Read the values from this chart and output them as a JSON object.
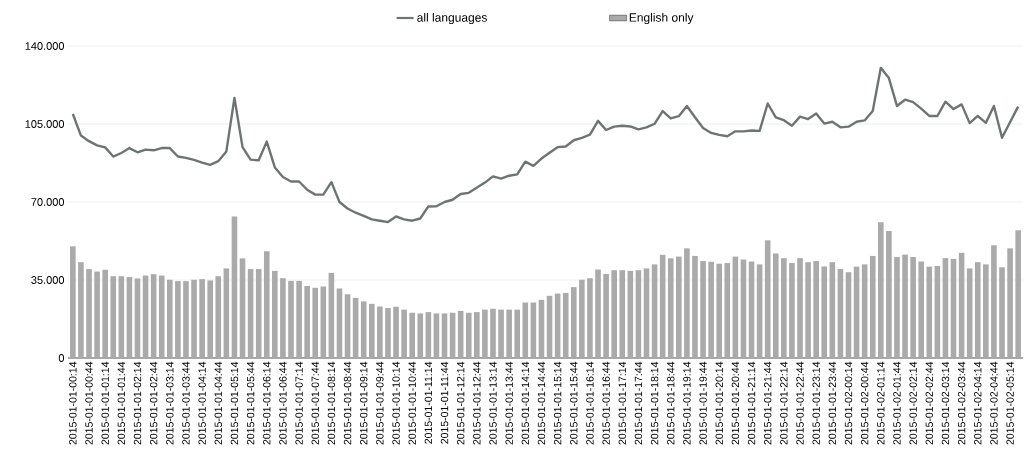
{
  "chart_data": {
    "type": "bar",
    "categories": [
      "2015-01-01-00:14",
      null,
      "2015-01-01-00:44",
      null,
      "2015-01-01-01:14",
      null,
      "2015-01-01-01:44",
      null,
      "2015-01-01-02:14",
      null,
      "2015-01-01-02:44",
      null,
      "2015-01-01-03:14",
      null,
      "2015-01-01-03:44",
      null,
      "2015-01-01-04:14",
      null,
      "2015-01-01-04:44",
      null,
      "2015-01-01-05:14",
      null,
      "2015-01-01-05:44",
      null,
      "2015-01-01-06:14",
      null,
      "2015-01-01-06:44",
      null,
      "2015-01-01-07:14",
      null,
      "2015-01-01-07:44",
      null,
      "2015-01-01-08:14",
      null,
      "2015-01-01-08:44",
      null,
      "2015-01-01-09:14",
      null,
      "2015-01-01-09:44",
      null,
      "2015-01-01-10:14",
      null,
      "2015-01-01-10:44",
      null,
      "2015-01-01-11:14",
      null,
      "2015-01-01-11:44",
      null,
      "2015-01-01-12:14",
      null,
      "2015-01-01-12:44",
      null,
      "2015-01-01-13:14",
      null,
      "2015-01-01-13:44",
      null,
      "2015-01-01-14:14",
      null,
      "2015-01-01-14:44",
      null,
      "2015-01-01-15:14",
      null,
      "2015-01-01-15:44",
      null,
      "2015-01-01-16:14",
      null,
      "2015-01-01-16:44",
      null,
      "2015-01-01-17:14",
      null,
      "2015-01-01-17:44",
      null,
      "2015-01-01-18:14",
      null,
      "2015-01-01-18:44",
      null,
      "2015-01-01-19:14",
      null,
      "2015-01-01-19:44",
      null,
      "2015-01-01-20:14",
      null,
      "2015-01-01-20:44",
      null,
      "2015-01-01-21:14",
      null,
      "2015-01-01-21:44",
      null,
      "2015-01-01-22:14",
      null,
      "2015-01-01-22:44",
      null,
      "2015-01-01-23:14",
      null,
      "2015-01-01-23:44",
      null,
      "2015-01-02-00:14",
      null,
      "2015-01-02-00:44",
      null,
      "2015-01-02-01:14",
      null,
      "2015-01-02-01:44",
      null,
      "2015-01-02-02:14",
      null,
      "2015-01-02-02:44",
      null,
      "2015-01-02-03:14",
      null,
      "2015-01-02-03:44",
      null,
      "2015-01-02-04:14",
      null,
      "2015-01-02-04:44",
      null,
      "2015-01-02-05:14",
      null
    ],
    "series": [
      {
        "name": "all languages",
        "type": "line",
        "color": "#6e7571",
        "values": [
          109500,
          99800,
          97300,
          95400,
          94500,
          90400,
          92000,
          94200,
          92300,
          93500,
          93200,
          94200,
          94200,
          90400,
          89800,
          88900,
          87700,
          86700,
          88300,
          92700,
          116700,
          94600,
          89000,
          88700,
          97100,
          85500,
          81200,
          79200,
          79200,
          75500,
          73300,
          73300,
          78900,
          70000,
          67100,
          65200,
          63800,
          62200,
          61600,
          61000,
          63500,
          62200,
          61600,
          62600,
          68000,
          68100,
          70000,
          71000,
          73600,
          74100,
          76400,
          78700,
          81500,
          80500,
          81800,
          82400,
          88100,
          86200,
          89500,
          92100,
          94600,
          94900,
          97700,
          98800,
          100200,
          106400,
          102300,
          103800,
          104200,
          103900,
          102600,
          103500,
          105100,
          110800,
          107500,
          108500,
          113100,
          108000,
          103200,
          101000,
          100100,
          99500,
          101700,
          101700,
          102100,
          101900,
          114200,
          108000,
          106700,
          104200,
          108300,
          107200,
          109700,
          105200,
          106000,
          103500,
          103800,
          106000,
          106600,
          110800,
          130200,
          125600,
          113100,
          115900,
          114800,
          111900,
          108600,
          108600,
          115000,
          111700,
          113800,
          105400,
          108600,
          105500,
          113100,
          98800,
          105800,
          112800
        ]
      },
      {
        "name": "English only",
        "color": "#aaaaaa",
        "values": [
          50100,
          43000,
          39900,
          38800,
          39600,
          36700,
          36700,
          36300,
          35700,
          37000,
          37600,
          37000,
          35100,
          34500,
          34500,
          35100,
          35400,
          34800,
          36700,
          40200,
          63500,
          44700,
          39900,
          39900,
          47900,
          39100,
          35800,
          34600,
          34600,
          32300,
          31500,
          32100,
          38200,
          31200,
          28600,
          27000,
          25400,
          24300,
          23100,
          22400,
          23000,
          21700,
          20300,
          20000,
          20600,
          20000,
          20000,
          20300,
          21100,
          20300,
          20600,
          21700,
          22100,
          21700,
          21700,
          21700,
          24900,
          24900,
          26100,
          27900,
          28900,
          29200,
          31800,
          35100,
          35800,
          39700,
          37700,
          39400,
          39400,
          39100,
          39400,
          40200,
          42000,
          46300,
          44700,
          45500,
          49200,
          45800,
          43500,
          43200,
          42300,
          42600,
          45500,
          44200,
          43300,
          42000,
          52800,
          46900,
          44800,
          42600,
          44800,
          43000,
          43500,
          41100,
          43000,
          39900,
          38500,
          41000,
          42000,
          45800,
          60900,
          57000,
          45300,
          46400,
          45300,
          43300,
          41000,
          41300,
          44800,
          44500,
          47200,
          40200,
          43000,
          42000,
          50600,
          40700,
          49200,
          57300
        ]
      }
    ],
    "ylim": [
      0,
      140000
    ],
    "yticks": [
      0,
      {
        "value": 35000,
        "label": "35.000"
      },
      {
        "value": 70000,
        "label": "70.000"
      },
      {
        "value": 105000,
        "label": "105.000"
      },
      {
        "value": 140000,
        "label": "140.000"
      }
    ],
    "grid": "y",
    "legend": "top"
  }
}
